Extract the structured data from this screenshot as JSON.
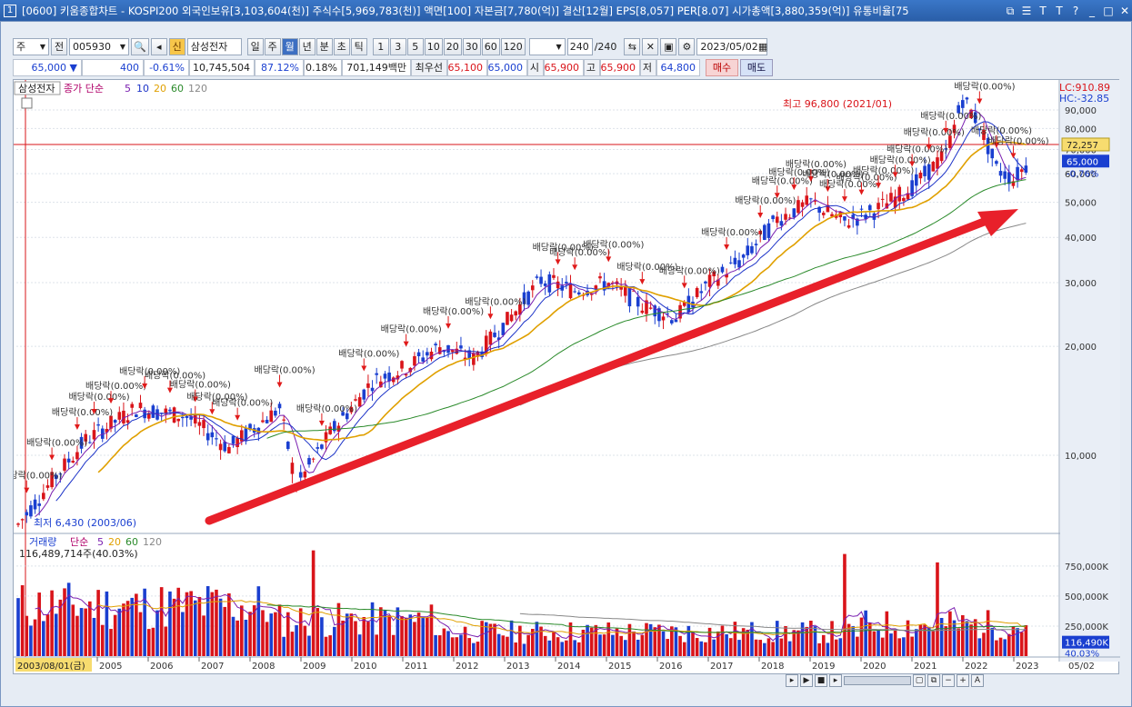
{
  "window": {
    "number": "1",
    "title": "[0600] 키움종합차트 - KOSPI200 외국인보유[3,103,604(천)] 주식수[5,969,783(천)] 액면[100] 자본금[7,780(억)] 결산[12월] EPS[8,057] PER[8.07] 시가총액[3,880,359(억)] 유통비율[75"
  },
  "toolbar": {
    "market": "주",
    "jeon_label": "전",
    "code": "005930",
    "shin_label": "신",
    "stock_name": "삼성전자",
    "periods": [
      "일",
      "주",
      "월",
      "년",
      "분",
      "초",
      "틱"
    ],
    "active_period": "월",
    "intervals": [
      "1",
      "3",
      "5",
      "10",
      "20",
      "30",
      "60",
      "120"
    ],
    "count": "240",
    "count_total": "/240",
    "date": "2023/05/02"
  },
  "quote": {
    "price": "65,000 ▼",
    "change": "400",
    "change_pct": "-0.61%",
    "volume": "10,745,504",
    "vol_ratio": "87.12%",
    "turnover": "0.18%",
    "amount": "701,149백만",
    "best_label": "최우선",
    "ask": "65,100",
    "bid": "65,000",
    "open_label": "시",
    "open": "65,900",
    "high_label": "고",
    "high": "65,900",
    "low_label": "저",
    "low": "64,800",
    "buy": "매수",
    "sell": "매도"
  },
  "price_panel": {
    "stock_label": "삼성전자",
    "legend_prefix": "종가 단순",
    "ma_periods": [
      "5",
      "10",
      "20",
      "60",
      "120"
    ],
    "lc": "LC:910.89",
    "hc": "HC:-32.85",
    "high_note": "최고 96,800 (2021/01)",
    "low_note": "최저 6,430 (2003/06)",
    "hline_value": "72,257",
    "current_value": "65,000",
    "current_pct": "-0.76%",
    "dividend_label": "배당락(0.00%)",
    "ylabels": [
      "90,000",
      "80,000",
      "70,000",
      "60,000",
      "50,000",
      "40,000",
      "30,000",
      "20,000",
      "10,000"
    ]
  },
  "volume_panel": {
    "label": "거래량",
    "legend_prefix": "단순",
    "ma_periods": [
      "5",
      "20",
      "60",
      "120"
    ],
    "info": "116,489,714주(40.03%)",
    "ylabels": [
      "750,000K",
      "500,000K",
      "250,000K"
    ],
    "current_value": "116,490K",
    "current_pct": "40.03%"
  },
  "xaxis": {
    "cursor_date": "2003/08/01(금)",
    "years": [
      "2005",
      "2006",
      "2007",
      "2008",
      "2009",
      "2010",
      "2011",
      "2012",
      "2013",
      "2014",
      "2015",
      "2016",
      "2017",
      "2018",
      "2019",
      "2020",
      "2021",
      "2022",
      "2023"
    ],
    "end": "05/02"
  },
  "colors": {
    "up": "#d9141a",
    "down": "#1a3fd0",
    "ma5": "#7a1fb0",
    "ma10": "#1c33c8",
    "ma20": "#e0a000",
    "ma60": "#2a8a2a",
    "ma120": "#888888",
    "arrow": "#e8202a"
  }
}
